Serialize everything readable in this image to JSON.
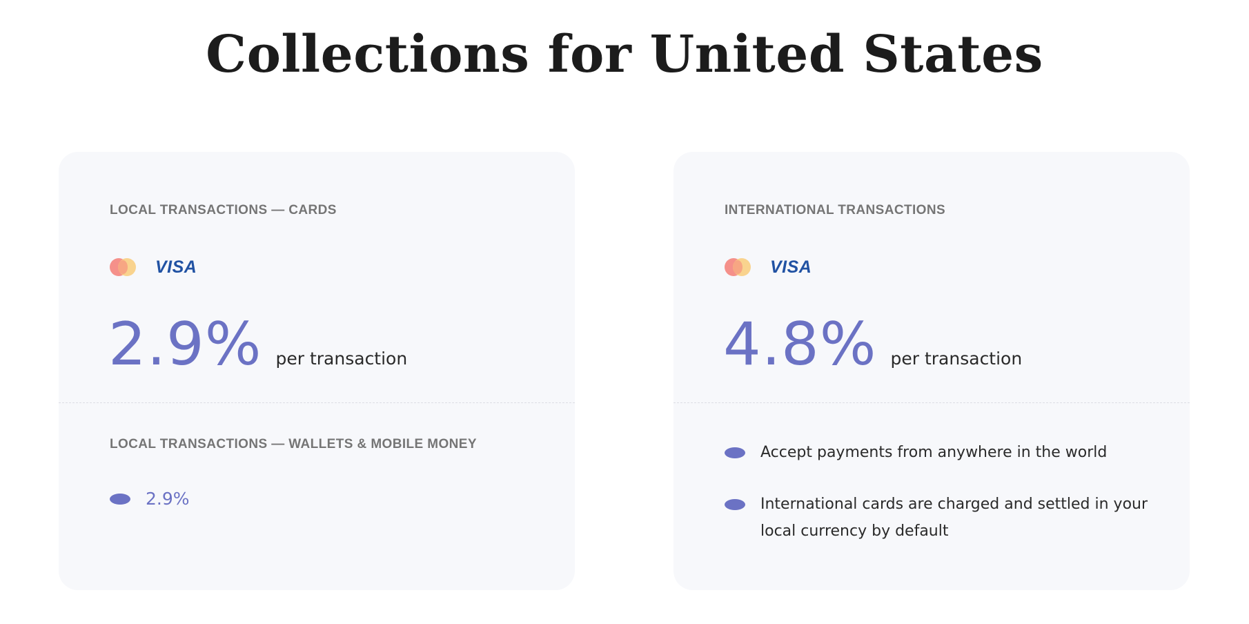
{
  "title": "Collections for United States",
  "local_card": {
    "label": "LOCAL TRANSACTIONS — CARDS",
    "brands": [
      "mastercard-icon",
      "visa-icon"
    ],
    "visa_text": "VISA",
    "rate": "2.9%",
    "rate_suffix": "per transaction",
    "wallet_label": "LOCAL TRANSACTIONS — WALLETS & MOBILE MONEY",
    "wallet_rate": "2.9%"
  },
  "international_card": {
    "label": "INTERNATIONAL TRANSACTIONS",
    "brands": [
      "mastercard-icon",
      "visa-icon"
    ],
    "visa_text": "VISA",
    "rate": "4.8%",
    "rate_suffix": "per transaction",
    "bullets": [
      "Accept payments from anywhere in the world",
      "International cards are charged and settled in your local currency by default"
    ]
  },
  "colors": {
    "accent": "#6b72c4",
    "card_bg": "#f7f8fb",
    "label": "#757575",
    "visa": "#2152a3",
    "mastercard_red": "#f5908a",
    "mastercard_yellow": "#f9cf84"
  }
}
